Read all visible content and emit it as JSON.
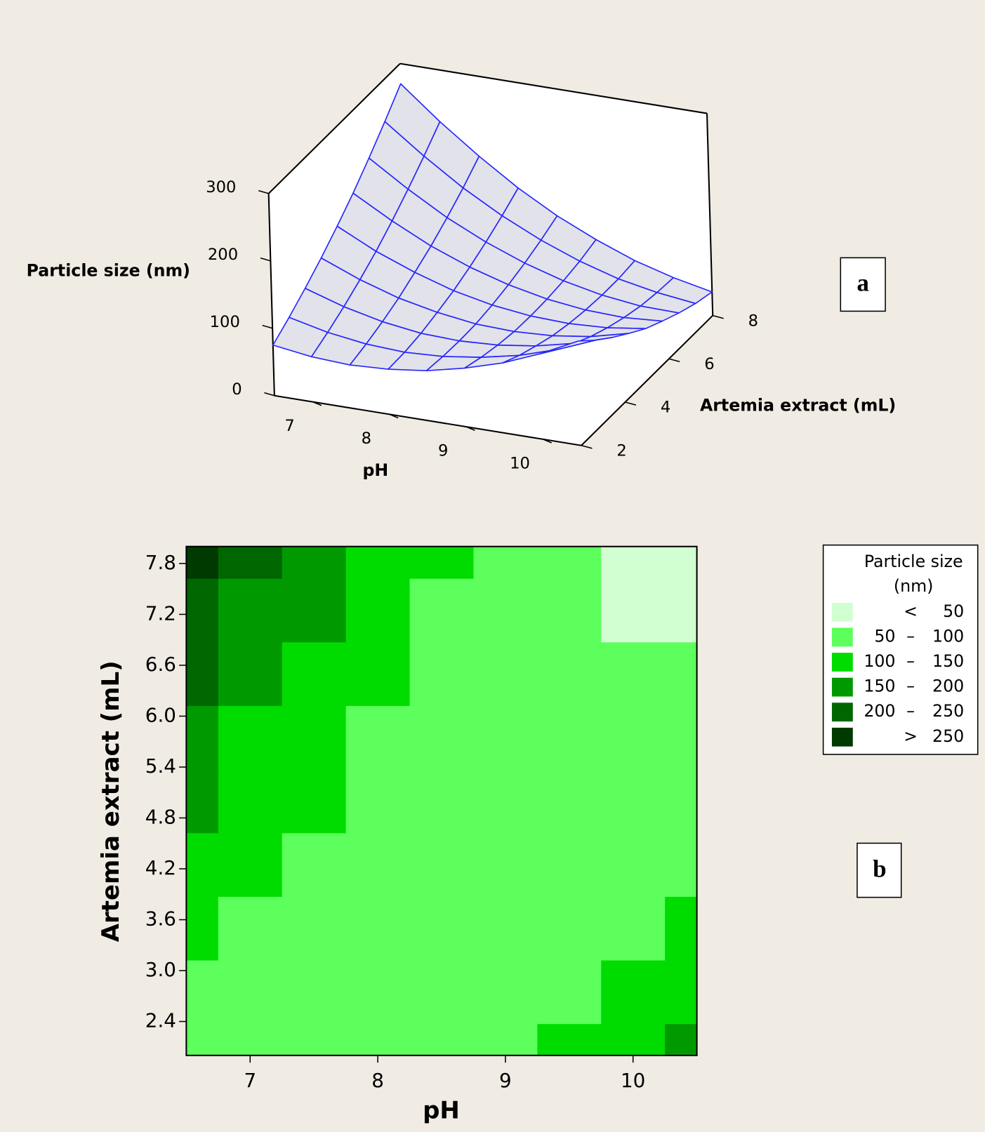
{
  "chart_data": [
    {
      "type": "surface",
      "z_label": "Particle size (nm)",
      "x_label": "pH",
      "y_label": "Artemia extract (mL)",
      "panel_label": "a",
      "x": [
        6.5,
        7,
        7.5,
        8,
        8.5,
        9,
        9.5,
        10,
        10.5
      ],
      "y": [
        2,
        2.75,
        3.5,
        4.25,
        5,
        5.75,
        6.5,
        7.25,
        8
      ],
      "z": [
        [
          75,
          67,
          64,
          67,
          74,
          87,
          104,
          127,
          155
        ],
        [
          92,
          79,
          71,
          68,
          71,
          79,
          91,
          109,
          132
        ],
        [
          111,
          93,
          80,
          72,
          70,
          73,
          81,
          94,
          112
        ],
        [
          132,
          109,
          91,
          79,
          71,
          69,
          72,
          80,
          94
        ],
        [
          155,
          127,
          105,
          87,
          75,
          68,
          66,
          69,
          77
        ],
        [
          180,
          148,
          120,
          98,
          81,
          69,
          62,
          60,
          64
        ],
        [
          208,
          171,
          138,
          111,
          89,
          72,
          60,
          53,
          52
        ],
        [
          238,
          196,
          158,
          126,
          99,
          77,
          60,
          49,
          42
        ],
        [
          270,
          223,
          181,
          143,
          111,
          85,
          63,
          47,
          35
        ]
      ],
      "color": "#2626ff",
      "surface_color": "#e2e2ea",
      "xlim": [
        6.5,
        10.5
      ],
      "ylim": [
        2,
        8
      ],
      "zlim": [
        0,
        300
      ],
      "xticks": [
        7,
        8,
        9,
        10
      ],
      "yticks": [
        2,
        4,
        6,
        8
      ],
      "zticks": [
        0,
        100,
        200,
        300
      ]
    },
    {
      "type": "contour",
      "x_label": "pH",
      "y_label": "Artemia extract (mL)",
      "panel_label": "b",
      "x": [
        6.5,
        7,
        7.5,
        8,
        8.5,
        9,
        9.5,
        10,
        10.5
      ],
      "y": [
        2,
        2.75,
        3.5,
        4.25,
        5,
        5.75,
        6.5,
        7.25,
        8
      ],
      "z": [
        [
          75,
          67,
          64,
          67,
          74,
          87,
          104,
          127,
          155
        ],
        [
          92,
          79,
          71,
          68,
          71,
          79,
          91,
          109,
          132
        ],
        [
          111,
          93,
          80,
          72,
          70,
          73,
          81,
          94,
          112
        ],
        [
          132,
          109,
          91,
          79,
          71,
          69,
          72,
          80,
          94
        ],
        [
          155,
          127,
          105,
          87,
          75,
          68,
          66,
          69,
          77
        ],
        [
          180,
          148,
          120,
          98,
          81,
          69,
          62,
          60,
          64
        ],
        [
          208,
          171,
          138,
          111,
          89,
          72,
          60,
          53,
          52
        ],
        [
          238,
          196,
          158,
          126,
          99,
          77,
          60,
          49,
          42
        ],
        [
          270,
          223,
          181,
          143,
          111,
          85,
          63,
          47,
          35
        ]
      ],
      "xlim": [
        6.5,
        10.5
      ],
      "ylim": [
        2,
        8
      ],
      "xticks": [
        7,
        8,
        9,
        10
      ],
      "yticks": [
        2.4,
        {
          "value": 3,
          "label": "3.0"
        },
        3.6,
        4.2,
        4.8,
        5.4,
        {
          "value": 6,
          "label": "6.0"
        },
        6.6,
        7.2,
        7.8
      ],
      "legend_title": [
        "Particle size",
        "(nm)"
      ],
      "bands": [
        {
          "op": "<",
          "hi": 50,
          "color": "#d2ffd2"
        },
        {
          "lo": 50,
          "op": "–",
          "hi": 100,
          "color": "#5cff5c"
        },
        {
          "lo": 100,
          "op": "–",
          "hi": 150,
          "color": "#00dc00"
        },
        {
          "lo": 150,
          "op": "–",
          "hi": 200,
          "color": "#009a00"
        },
        {
          "lo": 200,
          "op": "–",
          "hi": 250,
          "color": "#006600"
        },
        {
          "op": ">",
          "lo": 250,
          "color": "#003a00"
        }
      ]
    }
  ]
}
